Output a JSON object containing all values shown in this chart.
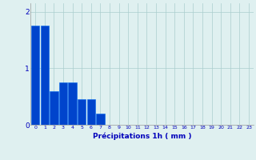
{
  "categories": [
    0,
    1,
    2,
    3,
    4,
    5,
    6,
    7,
    8,
    9,
    10,
    11,
    12,
    13,
    14,
    15,
    16,
    17,
    18,
    19,
    20,
    21,
    22,
    23
  ],
  "values": [
    1.75,
    1.75,
    0.6,
    0.75,
    0.75,
    0.45,
    0.45,
    0.2,
    0,
    0,
    0,
    0,
    0,
    0,
    0,
    0,
    0,
    0,
    0,
    0,
    0,
    0,
    0,
    0
  ],
  "bar_color": "#0044cc",
  "bar_edge_color": "#0066ee",
  "background_color": "#dff0f0",
  "grid_color": "#aacece",
  "xlabel": "Précipitations 1h ( mm )",
  "ylim": [
    0,
    2.15
  ],
  "yticks": [
    0,
    1,
    2
  ],
  "title": ""
}
